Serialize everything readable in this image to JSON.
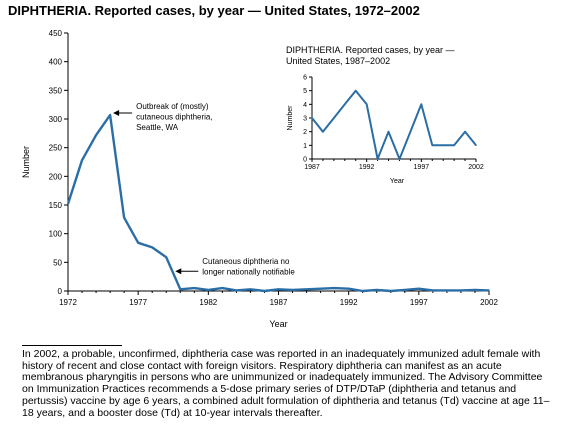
{
  "chart_data": [
    {
      "type": "line",
      "title": "DIPHTHERIA. Reported cases, by year — United States, 1972–2002",
      "xlabel": "Year",
      "ylabel": "Number",
      "xlim": [
        1972,
        2002
      ],
      "ylim": [
        0,
        450
      ],
      "x_ticks": [
        1972,
        1977,
        1982,
        1987,
        1992,
        1997,
        2002
      ],
      "y_ticks": [
        0,
        50,
        100,
        150,
        200,
        250,
        300,
        350,
        400,
        450
      ],
      "color": "#2b6ea6",
      "x": [
        1972,
        1973,
        1974,
        1975,
        1976,
        1977,
        1978,
        1979,
        1980,
        1981,
        1982,
        1983,
        1984,
        1985,
        1986,
        1987,
        1988,
        1989,
        1990,
        1991,
        1992,
        1993,
        1994,
        1995,
        1996,
        1997,
        1998,
        1999,
        2000,
        2001,
        2002
      ],
      "values": [
        152,
        228,
        272,
        307,
        128,
        84,
        76,
        59,
        3,
        5,
        2,
        5,
        1,
        3,
        0,
        3,
        2,
        3,
        4,
        5,
        4,
        0,
        2,
        0,
        2,
        4,
        1,
        1,
        1,
        2,
        1
      ],
      "annotations": [
        {
          "lines": [
            "Outbreak of (mostly)",
            "cutaneous diphtheria,",
            "Seattle, WA"
          ],
          "x": 1975,
          "y": 307
        },
        {
          "lines": [
            "Cutaneous diphtheria no",
            "longer nationally notifiable"
          ],
          "x": 1980,
          "y": 45
        }
      ]
    },
    {
      "type": "line",
      "title_lines": [
        "DIPHTHERIA. Reported cases, by year —",
        "United States, 1987–2002"
      ],
      "xlabel": "Year",
      "ylabel": "Number",
      "xlim": [
        1987,
        2002
      ],
      "ylim": [
        0,
        6
      ],
      "x_ticks": [
        1987,
        1992,
        1997,
        2002
      ],
      "y_ticks": [
        0,
        1,
        2,
        3,
        4,
        5,
        6
      ],
      "color": "#2b6ea6",
      "x": [
        1987,
        1988,
        1989,
        1990,
        1991,
        1992,
        1993,
        1994,
        1995,
        1996,
        1997,
        1998,
        1999,
        2000,
        2001,
        2002
      ],
      "values": [
        3,
        2,
        3,
        4,
        5,
        4,
        0,
        2,
        0,
        2,
        4,
        1,
        1,
        1,
        2,
        1
      ]
    }
  ],
  "footnote": "In 2002, a probable, unconfirmed, diphtheria case was reported in an inadequately immunized adult female with history of recent and close contact with foreign visitors. Respiratory diphtheria can manifest as an acute membranous pharyngitis in persons who are unimmunized or inadequately immunized. The Advisory Committee on Immunization Practices recommends a 5-dose primary series of DTP/DTaP (diphtheria and tetanus and pertussis) vaccine by age 6 years, a combined adult formulation of diphtheria and tetanus (Td) vaccine at age 11–18 years, and a booster dose (Td) at 10-year intervals thereafter."
}
